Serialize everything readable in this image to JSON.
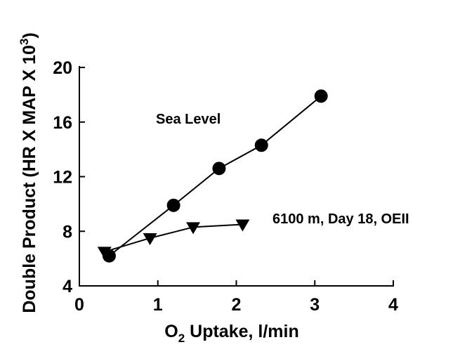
{
  "chart_data": {
    "type": "line",
    "title": "",
    "xlabel": {
      "main": "O",
      "sub": "2",
      "rest": " Uptake, l/min"
    },
    "ylabel": {
      "main": "Double Product (HR X MAP X 10",
      "sup": "3",
      "rest": ")"
    },
    "xlim": [
      0,
      4
    ],
    "ylim": [
      4,
      20
    ],
    "x_ticks": [
      0,
      1,
      2,
      3,
      4
    ],
    "y_ticks": [
      4,
      8,
      12,
      16,
      20
    ],
    "x_tick_labels": [
      "0",
      "1",
      "2",
      "3",
      "4"
    ],
    "y_tick_labels": [
      "4",
      "8",
      "12",
      "16",
      "20"
    ],
    "grid": false,
    "legend": "none",
    "series": [
      {
        "name": "Sea Level",
        "marker": "circle",
        "color": "#000000",
        "x": [
          0.38,
          1.2,
          1.78,
          2.32,
          3.08
        ],
        "y": [
          6.2,
          9.9,
          12.6,
          14.3,
          17.9
        ]
      },
      {
        "name": "6100 m, Day 18, OEII",
        "marker": "triangle-down",
        "color": "#000000",
        "x": [
          0.32,
          0.9,
          1.45,
          2.08
        ],
        "y": [
          6.5,
          7.5,
          8.3,
          8.5
        ]
      }
    ]
  }
}
